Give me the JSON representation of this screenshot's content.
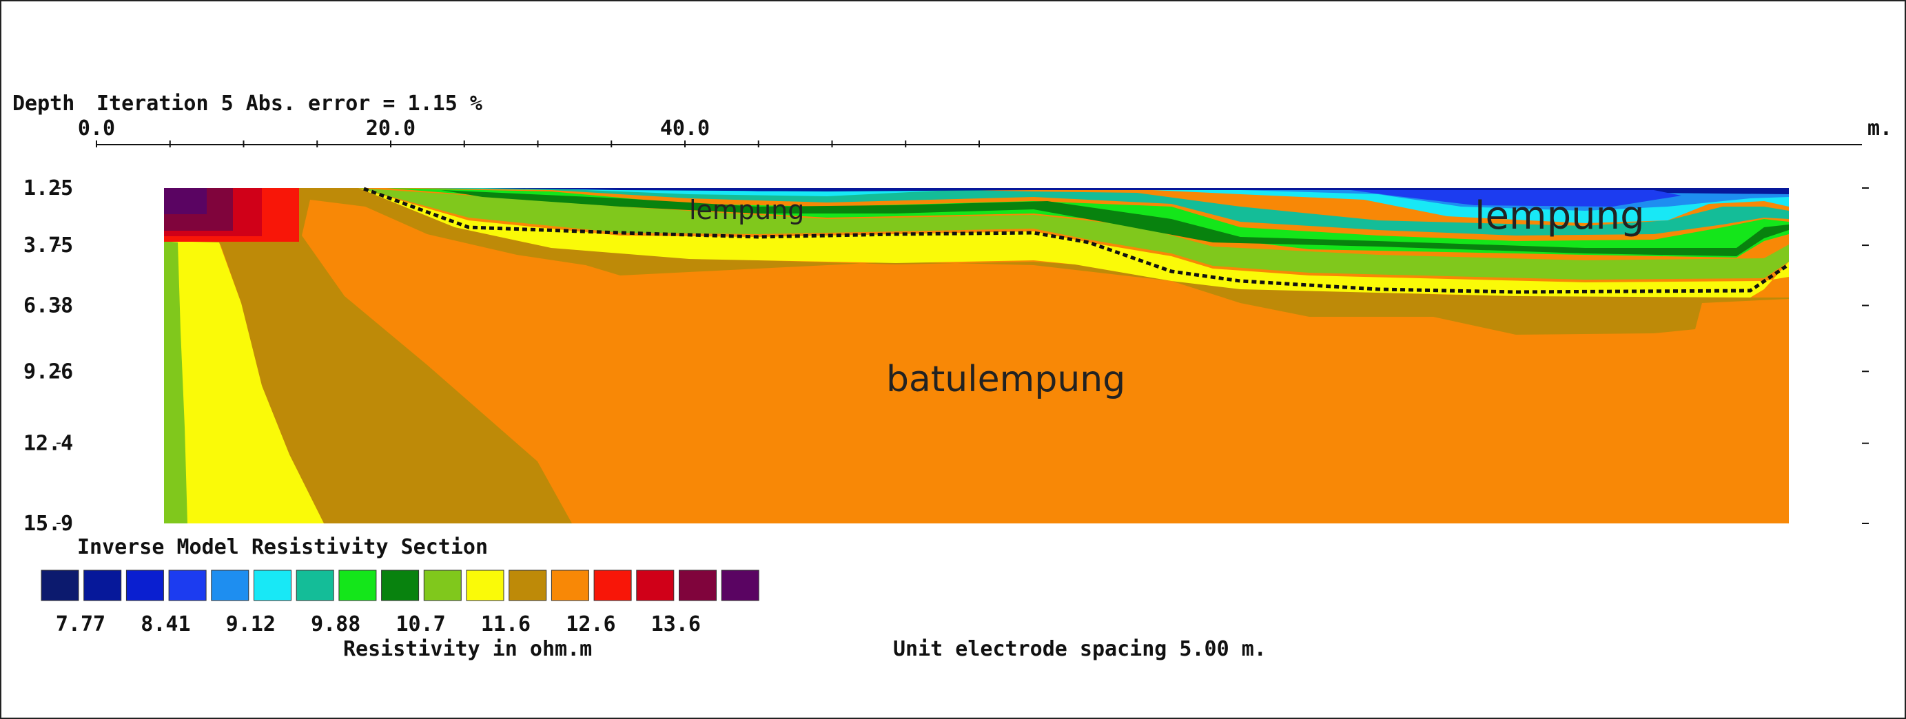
{
  "chart_data": {
    "type": "heatmap",
    "header": {
      "depth_label": "Depth",
      "iteration_text": "Iteration 5 Abs. error = 1.15 %",
      "unit_m": "m."
    },
    "x_ticks": [
      "0.0",
      "20.0",
      "40.0"
    ],
    "x_tick_values": [
      0,
      20,
      40
    ],
    "y_ticks": [
      "1.25",
      "3.75",
      "6.38",
      "9.26",
      "12.4",
      "15.9"
    ],
    "y_tick_values": [
      1.25,
      3.75,
      6.38,
      9.26,
      12.4,
      15.9
    ],
    "xlim": [
      0,
      61
    ],
    "section_title": "Inverse Model Resistivity Section",
    "legend_title": "Resistivity in ohm.m",
    "legend_colors": [
      "#0c1a6e",
      "#06189a",
      "#0a1fd0",
      "#1c3cf0",
      "#1e8ef0",
      "#18e8f6",
      "#14bd98",
      "#14e61a",
      "#08820e",
      "#80c81c",
      "#fafa08",
      "#be8a08",
      "#f88806",
      "#f81608",
      "#d00018",
      "#80043c",
      "#5a0462"
    ],
    "legend_values": [
      "7.77",
      "8.41",
      "9.12",
      "9.88",
      "10.7",
      "11.6",
      "12.6",
      "13.6"
    ],
    "spacing_note": "Unit electrode spacing 5.00 m.",
    "annotations": {
      "clay_left": "lempung",
      "clay_right": "lempung",
      "claystone": "batulempung"
    }
  }
}
